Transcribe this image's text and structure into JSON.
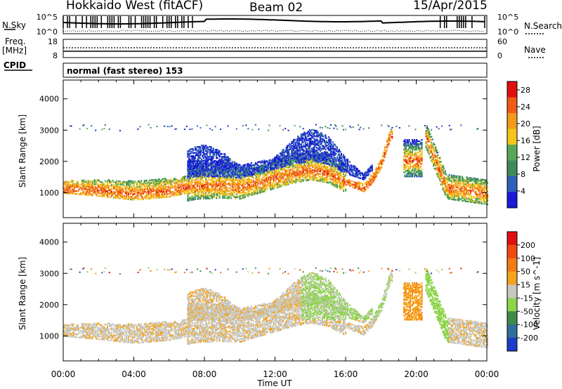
{
  "header": {
    "site": "Hokkaido West (fitACF)",
    "beam": "Beam 02",
    "date": "15/Apr/2015"
  },
  "top_panels": {
    "nsky_label": "N.Sky",
    "nsky_ticks": [
      "10^5",
      "10^0"
    ],
    "nsearch_label": "N.Search",
    "nsearch_ticks": [
      "10^5",
      "10^0"
    ],
    "freq_label_1": "Freq.",
    "freq_label_2": "[MHz]",
    "freq_ticks": [
      "18",
      "8"
    ],
    "nave_label": "Nave",
    "nave_ticks": [
      "60",
      "0"
    ],
    "cpid_label": "CPID",
    "cpid_text": "normal (fast stereo) 153"
  },
  "chart_data": [
    {
      "type": "heatmap",
      "title": "",
      "xlabel": "Time UT",
      "ylabel": "Slant Range [km]",
      "xlim": [
        0,
        24
      ],
      "ylim": [
        200,
        4600
      ],
      "x_ticks": [
        "00:00",
        "04:00",
        "08:00",
        "12:00",
        "16:00",
        "20:00",
        "00:00"
      ],
      "y_ticks": [
        "1000",
        "2000",
        "3000",
        "4000"
      ],
      "colorbar": {
        "label": "Power [dB]",
        "ticks": [
          "4",
          "8",
          "12",
          "16",
          "20",
          "24",
          "28"
        ],
        "range": [
          0,
          30
        ],
        "colors": [
          "#1a1ad6",
          "#2f5fb8",
          "#3f8a5a",
          "#57a857",
          "#f5c51c",
          "#f39a1a",
          "#ef5a14",
          "#e01010"
        ]
      },
      "echo_bands": [
        {
          "t": [
            0,
            2,
            4,
            6,
            7.5,
            9,
            10,
            11,
            12,
            13,
            14,
            15,
            16,
            17,
            17.5,
            18,
            18.5
          ],
          "range_km": [
            1100,
            1050,
            950,
            1050,
            1200,
            1200,
            1150,
            1300,
            1450,
            1600,
            1700,
            1600,
            1300,
            1100,
            1400,
            1900,
            2800
          ],
          "peak_db": 24
        }
      ]
    },
    {
      "type": "heatmap",
      "title": "",
      "xlabel": "Time UT",
      "ylabel": "Slant Range [km]",
      "xlim": [
        0,
        24
      ],
      "ylim": [
        200,
        4600
      ],
      "x_ticks": [
        "00:00",
        "04:00",
        "08:00",
        "12:00",
        "16:00",
        "20:00",
        "00:00"
      ],
      "y_ticks": [
        "1000",
        "2000",
        "3000",
        "4000"
      ],
      "colorbar": {
        "label": "Velocity [m s^-1]",
        "ticks": [
          "200",
          "100",
          "50",
          "15",
          "-15",
          "-50",
          "-100",
          "-200"
        ],
        "range": [
          -250,
          250
        ],
        "colors": [
          "#1a3cc8",
          "#2f6e9a",
          "#3f8a4a",
          "#8cd44a",
          "#c8c8c0",
          "#f5a31c",
          "#f37a14",
          "#ef4a10",
          "#e01010"
        ]
      }
    }
  ]
}
